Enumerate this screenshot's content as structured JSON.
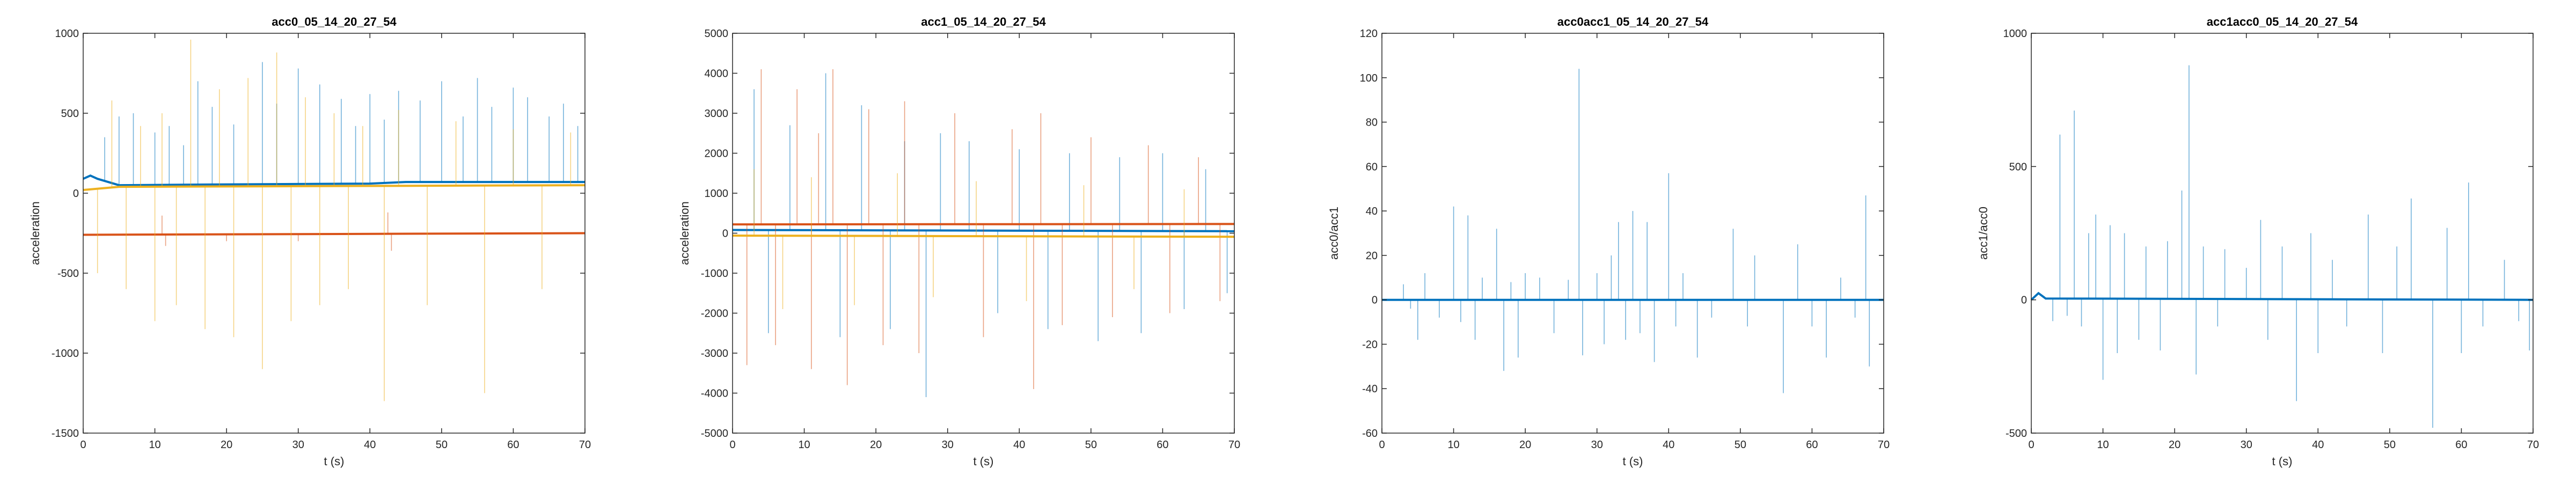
{
  "figure": {
    "colors": {
      "blue": "#0072BD",
      "orange": "#D95319",
      "yellow": "#EDB120",
      "axis": "#262626",
      "background": "#ffffff"
    }
  },
  "chart_data": [
    {
      "type": "line",
      "title": "acc0_05_14_20_27_54",
      "xlabel": "t (s)",
      "ylabel": "acceleration",
      "xlim": [
        0,
        70
      ],
      "ylim": [
        -1500,
        1000
      ],
      "xticks": [
        "0",
        "10",
        "20",
        "30",
        "40",
        "50",
        "60",
        "70"
      ],
      "yticks": [
        "-1500",
        "-1000",
        "-500",
        "0",
        "500",
        "1000"
      ],
      "grid": false,
      "series": [
        {
          "color": "#0072BD",
          "baseline": [
            [
              0,
              90
            ],
            [
              1,
              110
            ],
            [
              2,
              90
            ],
            [
              5,
              50
            ],
            [
              20,
              55
            ],
            [
              40,
              60
            ],
            [
              45,
              70
            ],
            [
              70,
              70
            ]
          ],
          "spikes": [
            [
              3,
              350
            ],
            [
              5,
              480
            ],
            [
              7,
              500
            ],
            [
              10,
              380
            ],
            [
              12,
              420
            ],
            [
              14,
              300
            ],
            [
              16,
              700
            ],
            [
              18,
              540
            ],
            [
              21,
              430
            ],
            [
              25,
              820
            ],
            [
              27,
              560
            ],
            [
              30,
              780
            ],
            [
              33,
              680
            ],
            [
              36,
              590
            ],
            [
              38,
              420
            ],
            [
              40,
              620
            ],
            [
              42,
              460
            ],
            [
              44,
              640
            ],
            [
              47,
              580
            ],
            [
              50,
              700
            ],
            [
              53,
              480
            ],
            [
              55,
              720
            ],
            [
              57,
              540
            ],
            [
              60,
              660
            ],
            [
              62,
              600
            ],
            [
              65,
              480
            ],
            [
              67,
              560
            ],
            [
              69,
              420
            ]
          ]
        },
        {
          "color": "#D95319",
          "baseline": [
            [
              0,
              -260
            ],
            [
              70,
              -250
            ]
          ],
          "spikes": [
            [
              11,
              -140
            ],
            [
              11.5,
              -330
            ],
            [
              42.5,
              -120
            ],
            [
              43,
              -360
            ],
            [
              20,
              -300
            ],
            [
              30,
              -300
            ]
          ]
        },
        {
          "color": "#EDB120",
          "baseline": [
            [
              0,
              20
            ],
            [
              5,
              40
            ],
            [
              70,
              50
            ]
          ],
          "spikes": [
            [
              2,
              -500
            ],
            [
              4,
              580
            ],
            [
              6,
              -600
            ],
            [
              8,
              420
            ],
            [
              10,
              -800
            ],
            [
              11,
              500
            ],
            [
              13,
              -700
            ],
            [
              15,
              960
            ],
            [
              17,
              -850
            ],
            [
              19,
              650
            ],
            [
              21,
              -900
            ],
            [
              23,
              720
            ],
            [
              25,
              -1100
            ],
            [
              27,
              880
            ],
            [
              29,
              -800
            ],
            [
              31,
              600
            ],
            [
              33,
              -700
            ],
            [
              35,
              500
            ],
            [
              37,
              -600
            ],
            [
              39,
              420
            ],
            [
              42,
              -1300
            ],
            [
              44,
              520
            ],
            [
              48,
              -700
            ],
            [
              52,
              450
            ],
            [
              56,
              -1250
            ],
            [
              60,
              400
            ],
            [
              64,
              -600
            ],
            [
              68,
              380
            ]
          ]
        }
      ]
    },
    {
      "type": "line",
      "title": "acc1_05_14_20_27_54",
      "xlabel": "t (s)",
      "ylabel": "acceleration",
      "xlim": [
        0,
        70
      ],
      "ylim": [
        -5000,
        5000
      ],
      "xticks": [
        "0",
        "10",
        "20",
        "30",
        "40",
        "50",
        "60",
        "70"
      ],
      "yticks": [
        "-5000",
        "-4000",
        "-3000",
        "-2000",
        "-1000",
        "0",
        "1000",
        "2000",
        "3000",
        "4000",
        "5000"
      ],
      "grid": false,
      "series": [
        {
          "color": "#0072BD",
          "baseline": [
            [
              0,
              80
            ],
            [
              70,
              50
            ]
          ],
          "spikes": [
            [
              3,
              3600
            ],
            [
              5,
              -2500
            ],
            [
              8,
              2700
            ],
            [
              13,
              4000
            ],
            [
              15,
              -2600
            ],
            [
              18,
              3200
            ],
            [
              22,
              -2400
            ],
            [
              24,
              2300
            ],
            [
              27,
              -4100
            ],
            [
              29,
              2500
            ],
            [
              33,
              2300
            ],
            [
              37,
              -2000
            ],
            [
              40,
              2100
            ],
            [
              44,
              -2400
            ],
            [
              47,
              2000
            ],
            [
              51,
              -2700
            ],
            [
              54,
              1900
            ],
            [
              57,
              -2500
            ],
            [
              60,
              2000
            ],
            [
              63,
              -1900
            ],
            [
              66,
              1600
            ],
            [
              69,
              -1500
            ]
          ]
        },
        {
          "color": "#D95319",
          "baseline": [
            [
              0,
              220
            ],
            [
              70,
              230
            ]
          ],
          "spikes": [
            [
              2,
              -3300
            ],
            [
              4,
              4100
            ],
            [
              6,
              -2800
            ],
            [
              9,
              3600
            ],
            [
              11,
              -3400
            ],
            [
              12,
              2500
            ],
            [
              14,
              4100
            ],
            [
              16,
              -3800
            ],
            [
              19,
              3100
            ],
            [
              21,
              -2800
            ],
            [
              24,
              3300
            ],
            [
              26,
              -3000
            ],
            [
              31,
              3000
            ],
            [
              35,
              -2600
            ],
            [
              39,
              2600
            ],
            [
              42,
              -3900
            ],
            [
              43,
              3000
            ],
            [
              46,
              -2300
            ],
            [
              50,
              2400
            ],
            [
              53,
              -2100
            ],
            [
              58,
              2200
            ],
            [
              61,
              -2000
            ],
            [
              65,
              1900
            ],
            [
              68,
              -1700
            ]
          ]
        },
        {
          "color": "#EDB120",
          "baseline": [
            [
              0,
              -60
            ],
            [
              70,
              -90
            ]
          ],
          "spikes": [
            [
              3,
              1600
            ],
            [
              7,
              -1900
            ],
            [
              11,
              1400
            ],
            [
              17,
              -1800
            ],
            [
              23,
              1500
            ],
            [
              28,
              -1600
            ],
            [
              34,
              1300
            ],
            [
              41,
              -1700
            ],
            [
              49,
              1200
            ],
            [
              56,
              -1400
            ],
            [
              63,
              1100
            ]
          ]
        }
      ]
    },
    {
      "type": "line",
      "title": "acc0acc1_05_14_20_27_54",
      "xlabel": "t (s)",
      "ylabel": "acc0/acc1",
      "xlim": [
        0,
        70
      ],
      "ylim": [
        -60,
        120
      ],
      "xticks": [
        "0",
        "10",
        "20",
        "30",
        "40",
        "50",
        "60",
        "70"
      ],
      "yticks": [
        "-60",
        "-40",
        "-20",
        "0",
        "20",
        "40",
        "60",
        "80",
        "100",
        "120"
      ],
      "grid": false,
      "series": [
        {
          "color": "#0072BD",
          "baseline": [
            [
              0,
              0
            ],
            [
              70,
              0
            ]
          ],
          "spikes": [
            [
              3,
              7
            ],
            [
              4,
              -4
            ],
            [
              5,
              -18
            ],
            [
              6,
              12
            ],
            [
              8,
              -8
            ],
            [
              10,
              42
            ],
            [
              11,
              -10
            ],
            [
              12,
              38
            ],
            [
              13,
              -18
            ],
            [
              14,
              10
            ],
            [
              16,
              32
            ],
            [
              17,
              -32
            ],
            [
              18,
              8
            ],
            [
              19,
              -26
            ],
            [
              20,
              12
            ],
            [
              22,
              10
            ],
            [
              24,
              -15
            ],
            [
              26,
              9
            ],
            [
              27.5,
              104
            ],
            [
              28,
              -25
            ],
            [
              30,
              12
            ],
            [
              31,
              -20
            ],
            [
              32,
              20
            ],
            [
              33,
              35
            ],
            [
              34,
              -18
            ],
            [
              35,
              40
            ],
            [
              36,
              -15
            ],
            [
              37,
              35
            ],
            [
              38,
              -28
            ],
            [
              40,
              57
            ],
            [
              41,
              -12
            ],
            [
              42,
              12
            ],
            [
              44,
              -26
            ],
            [
              46,
              -8
            ],
            [
              49,
              32
            ],
            [
              51,
              -12
            ],
            [
              52,
              20
            ],
            [
              56,
              -42
            ],
            [
              58,
              25
            ],
            [
              60,
              -12
            ],
            [
              62,
              -26
            ],
            [
              64,
              10
            ],
            [
              66,
              -8
            ],
            [
              67.5,
              47
            ],
            [
              68,
              -30
            ]
          ]
        }
      ]
    },
    {
      "type": "line",
      "title": "acc1acc0_05_14_20_27_54",
      "xlabel": "t (s)",
      "ylabel": "acc1/acc0",
      "xlim": [
        0,
        70
      ],
      "ylim": [
        -500,
        1000
      ],
      "xticks": [
        "0",
        "10",
        "20",
        "30",
        "40",
        "50",
        "60",
        "70"
      ],
      "yticks": [
        "-500",
        "0",
        "500",
        "1000"
      ],
      "grid": false,
      "series": [
        {
          "color": "#0072BD",
          "baseline": [
            [
              0,
              0
            ],
            [
              1,
              25
            ],
            [
              2,
              5
            ],
            [
              70,
              0
            ]
          ],
          "spikes": [
            [
              3,
              -80
            ],
            [
              4,
              620
            ],
            [
              5,
              -60
            ],
            [
              6,
              710
            ],
            [
              7,
              -100
            ],
            [
              8,
              250
            ],
            [
              9,
              320
            ],
            [
              10,
              -300
            ],
            [
              11,
              280
            ],
            [
              12,
              -200
            ],
            [
              13,
              250
            ],
            [
              15,
              -150
            ],
            [
              16,
              200
            ],
            [
              18,
              -190
            ],
            [
              19,
              220
            ],
            [
              21,
              410
            ],
            [
              22,
              880
            ],
            [
              23,
              -280
            ],
            [
              24,
              200
            ],
            [
              26,
              -100
            ],
            [
              27,
              190
            ],
            [
              30,
              120
            ],
            [
              32,
              300
            ],
            [
              33,
              -150
            ],
            [
              35,
              200
            ],
            [
              37,
              -380
            ],
            [
              39,
              250
            ],
            [
              40,
              -200
            ],
            [
              42,
              150
            ],
            [
              44,
              -100
            ],
            [
              47,
              320
            ],
            [
              49,
              -200
            ],
            [
              51,
              200
            ],
            [
              53,
              380
            ],
            [
              56,
              -480
            ],
            [
              58,
              270
            ],
            [
              60,
              -200
            ],
            [
              61,
              440
            ],
            [
              63,
              -100
            ],
            [
              66,
              150
            ],
            [
              68,
              -80
            ],
            [
              69.5,
              -190
            ]
          ]
        }
      ]
    }
  ]
}
